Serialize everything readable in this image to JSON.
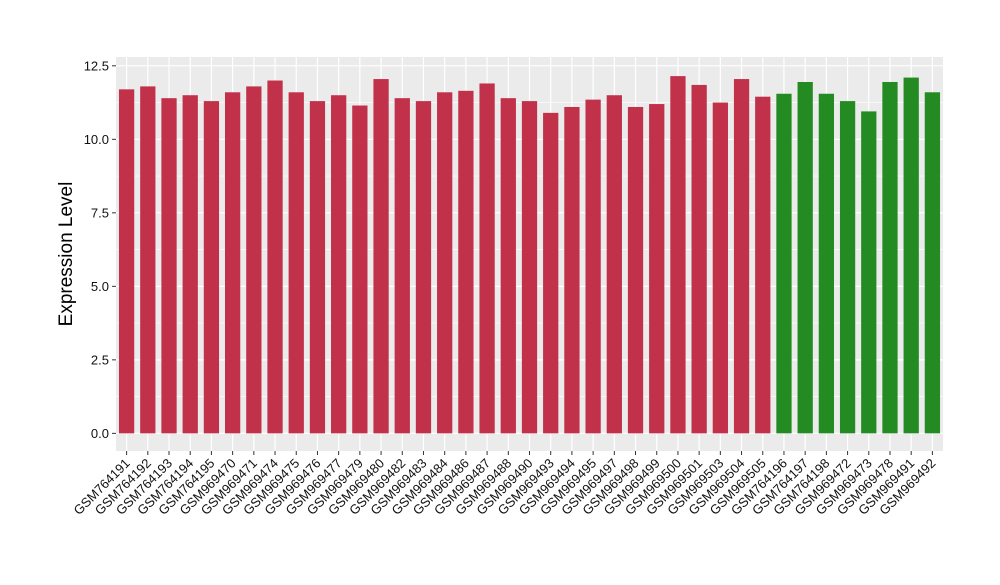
{
  "chart_data": {
    "type": "bar",
    "ylabel": "Expression Level",
    "xlabel": "",
    "ylim": [
      -0.6,
      12.8
    ],
    "yticks": [
      0.0,
      2.5,
      5.0,
      7.5,
      10.0,
      12.5
    ],
    "ytick_labels": [
      "0.0",
      "2.5",
      "5.0",
      "7.5",
      "10.0",
      "12.5"
    ],
    "grid": true,
    "legend": "none",
    "colors": {
      "group1": "#C1314A",
      "group2": "#238B22",
      "panel_bg": "#EBEBEB",
      "grid": "#FFFFFF"
    },
    "categories": [
      "GSM764191",
      "GSM764192",
      "GSM764193",
      "GSM764194",
      "GSM764195",
      "GSM969470",
      "GSM969471",
      "GSM969474",
      "GSM969475",
      "GSM969476",
      "GSM969477",
      "GSM969479",
      "GSM969480",
      "GSM969482",
      "GSM969483",
      "GSM969484",
      "GSM969486",
      "GSM969487",
      "GSM969488",
      "GSM969490",
      "GSM969493",
      "GSM969494",
      "GSM969495",
      "GSM969497",
      "GSM969498",
      "GSM969499",
      "GSM969500",
      "GSM969501",
      "GSM969503",
      "GSM969504",
      "GSM969505",
      "GSM764196",
      "GSM764197",
      "GSM764198",
      "GSM969472",
      "GSM969473",
      "GSM969478",
      "GSM969491",
      "GSM969492"
    ],
    "values": [
      11.7,
      11.8,
      11.4,
      11.5,
      11.3,
      11.6,
      11.8,
      12.0,
      11.6,
      11.3,
      11.5,
      11.15,
      12.05,
      11.4,
      11.3,
      11.6,
      11.65,
      11.9,
      11.4,
      11.3,
      10.9,
      11.1,
      11.35,
      11.5,
      11.1,
      11.2,
      12.15,
      11.85,
      11.25,
      12.05,
      11.45,
      11.55,
      11.95,
      11.55,
      11.3,
      10.95,
      11.95,
      12.1,
      11.6
    ],
    "groups": [
      1,
      1,
      1,
      1,
      1,
      1,
      1,
      1,
      1,
      1,
      1,
      1,
      1,
      1,
      1,
      1,
      1,
      1,
      1,
      1,
      1,
      1,
      1,
      1,
      1,
      1,
      1,
      1,
      1,
      1,
      1,
      2,
      2,
      2,
      2,
      2,
      2,
      2,
      2
    ]
  }
}
